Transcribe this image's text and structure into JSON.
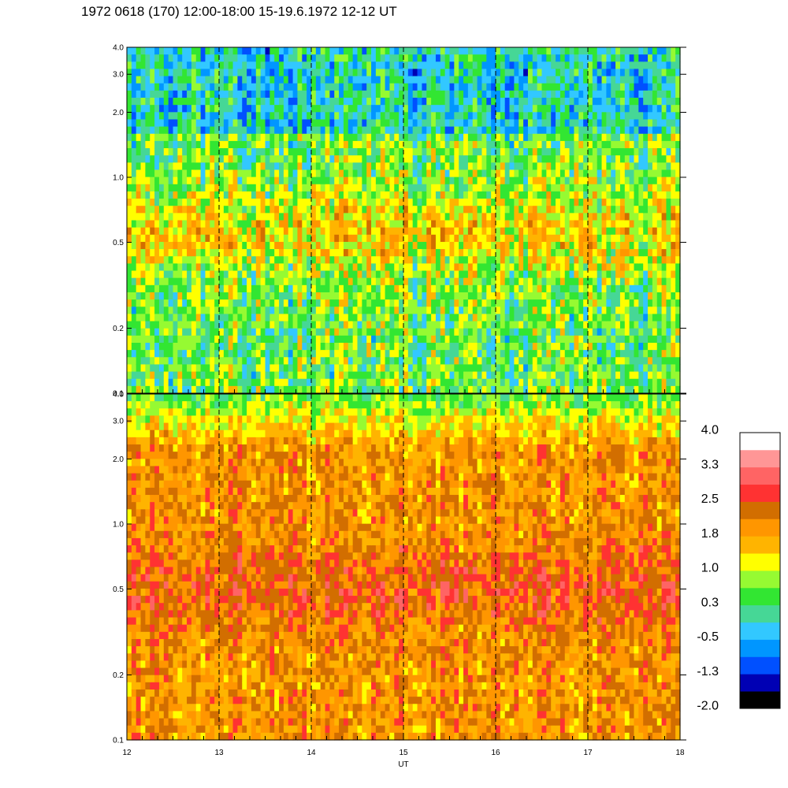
{
  "title": "1972 0618 (170) 12:00-18:00 15-19.6.1972  12-12 UT",
  "colors": {
    "scale": [
      "#000000",
      "#0000b4",
      "#0050ff",
      "#0096ff",
      "#32c8ff",
      "#46d796",
      "#32e632",
      "#96fa32",
      "#ffff00",
      "#ffb400",
      "#ff9600",
      "#d26e00",
      "#ff3232",
      "#ff6464",
      "#ff9696",
      "#ffffff"
    ]
  },
  "chart_data": [
    {
      "type": "heatmap",
      "panel": "top",
      "title": "",
      "xlabel": "",
      "ylabel": "",
      "x_range": [
        12,
        18
      ],
      "y_range": [
        0.1,
        4.0
      ],
      "y_scale": "log",
      "y_ticks": [
        "4.0",
        "3.0",
        "2.0",
        "1.0",
        "0.5",
        "0.2",
        "0.1"
      ],
      "y_tick_values": [
        4.0,
        3.0,
        2.0,
        1.0,
        0.5,
        0.2,
        0.1
      ],
      "x_gridlines": [
        13,
        14,
        15,
        16,
        17
      ],
      "value_range": [
        -2.0,
        4.0
      ],
      "dominant_level_approx": 0.3
    },
    {
      "type": "heatmap",
      "panel": "bottom",
      "title": "",
      "xlabel": "UT",
      "ylabel": "",
      "x_range": [
        12,
        18
      ],
      "y_range": [
        0.1,
        4.0
      ],
      "y_scale": "log",
      "x_ticks": [
        "12",
        "13",
        "14",
        "15",
        "16",
        "17",
        "18"
      ],
      "x_tick_values": [
        12,
        13,
        14,
        15,
        16,
        17,
        18
      ],
      "y_ticks": [
        "4.0",
        "3.0",
        "2.0",
        "1.0",
        "0.5",
        "0.2",
        "0.1"
      ],
      "y_tick_values": [
        4.0,
        3.0,
        2.0,
        1.0,
        0.5,
        0.2,
        0.1
      ],
      "x_gridlines": [
        13,
        14,
        15,
        16,
        17
      ],
      "value_range": [
        -2.0,
        4.0
      ],
      "dominant_level_approx": 1.8
    }
  ],
  "colorbar": {
    "labels": [
      "4.0",
      "3.3",
      "2.5",
      "1.8",
      "1.0",
      "0.3",
      "-0.5",
      "-1.3",
      "-2.0"
    ],
    "range": [
      -2.0,
      4.0
    ]
  }
}
